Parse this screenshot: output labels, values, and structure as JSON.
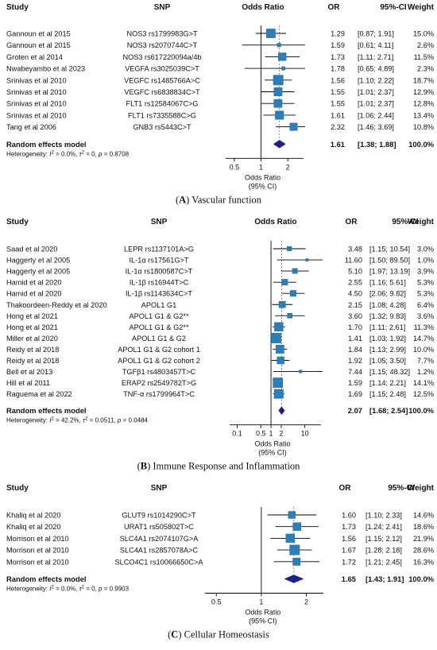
{
  "columns": {
    "study": "Study",
    "snp": "SNP",
    "or_header": "Odds Ratio",
    "or": "OR",
    "ci": "95%-CI",
    "weight": "Weight"
  },
  "chart_data": [
    {
      "type": "forest",
      "caption_letter": "A",
      "caption_text": "Vascular function",
      "xscale": "log",
      "xlim": [
        0.4,
        3.0
      ],
      "ticks": [
        "0.5",
        "1",
        "2"
      ],
      "tick_values": [
        0.5,
        1,
        2
      ],
      "xlabel_line1": "Odds Ratio",
      "xlabel_line2": "(95% CI)",
      "rows": [
        {
          "study": "Gannoun et al 2015",
          "snp": "NOS3 rs1799983G>T",
          "or": 1.29,
          "lo": 0.87,
          "hi": 1.91,
          "weight": 15.0,
          "or_text": "1.29",
          "ci_text": "[0.87; 1.91]",
          "weight_text": "15.0%"
        },
        {
          "study": "Gannoun et al 2015",
          "snp": "NOS3 rs2070744C>T",
          "or": 1.59,
          "lo": 0.61,
          "hi": 4.11,
          "weight": 2.6,
          "or_text": "1.59",
          "ci_text": "[0.61; 4.11]",
          "weight_text": "2.6%"
        },
        {
          "study": "Groten et al 2014",
          "snp": "NOS3 rs617220094a/4b",
          "or": 1.73,
          "lo": 1.11,
          "hi": 2.71,
          "weight": 11.5,
          "or_text": "1.73",
          "ci_text": "[1.11; 2.71]",
          "weight_text": "11.5%"
        },
        {
          "study": "Nwabeyambo et al 2023",
          "snp": "VEGFA rs3025039C>T",
          "or": 1.78,
          "lo": 0.65,
          "hi": 4.89,
          "weight": 2.3,
          "or_text": "1.78",
          "ci_text": "[0.65; 4.89]",
          "weight_text": "2.3%"
        },
        {
          "study": "Srinivas et al 2010",
          "snp": "VEGFC rs1485766A>C",
          "or": 1.56,
          "lo": 1.1,
          "hi": 2.22,
          "weight": 18.7,
          "or_text": "1.56",
          "ci_text": "[1.10; 2.22]",
          "weight_text": "18.7%"
        },
        {
          "study": "Srinivas et al 2010",
          "snp": "VEGFC rs6838834C>T",
          "or": 1.55,
          "lo": 1.01,
          "hi": 2.37,
          "weight": 12.9,
          "or_text": "1.55",
          "ci_text": "[1.01; 2.37]",
          "weight_text": "12.9%"
        },
        {
          "study": "Srinivas et al 2010",
          "snp": "FLT1 rs12584067C>G",
          "or": 1.55,
          "lo": 1.01,
          "hi": 2.37,
          "weight": 12.8,
          "or_text": "1.55",
          "ci_text": "[1.01; 2.37]",
          "weight_text": "12.8%"
        },
        {
          "study": "Srinivas et al 2010",
          "snp": "FLT1 rs7335588C>G",
          "or": 1.61,
          "lo": 1.06,
          "hi": 2.44,
          "weight": 13.4,
          "or_text": "1.61",
          "ci_text": "[1.06; 2.44]",
          "weight_text": "13.4%"
        },
        {
          "study": "Tang et al 2006",
          "snp": "GNB3 rs5443C>T",
          "or": 2.32,
          "lo": 1.46,
          "hi": 3.69,
          "weight": 10.8,
          "or_text": "2.32",
          "ci_text": "[1.46; 3.69]",
          "weight_text": "10.8%"
        }
      ],
      "summary": {
        "label": "Random effects model",
        "or": 1.61,
        "lo": 1.38,
        "hi": 1.88,
        "or_text": "1.61",
        "ci_text": "[1.38; 1.88]",
        "weight_text": "100.0%"
      },
      "heterogeneity": {
        "i2": "0.0%",
        "tau2": "0",
        "p": "0.8708"
      }
    },
    {
      "type": "forest",
      "caption_letter": "B",
      "caption_text": "Immune Response and Inflammation",
      "xscale": "log",
      "xlim": [
        0.06,
        30
      ],
      "ticks": [
        "0.1",
        "0.5",
        "1",
        "2",
        "10"
      ],
      "tick_values": [
        0.1,
        0.5,
        1,
        2,
        10
      ],
      "xlabel_line1": "Odds Ratio",
      "xlabel_line2": "(95% CI)",
      "rows": [
        {
          "study": "Saad et al 2020",
          "snp": "LEPR rs1137101A>G",
          "or": 3.48,
          "lo": 1.15,
          "hi": 10.54,
          "weight": 3.0,
          "or_text": "3.48",
          "ci_text": "[1.15; 10.54]",
          "weight_text": "3.0%"
        },
        {
          "study": "Haggerty et al 2005",
          "snp": "IL-1α rs17561G>T",
          "or": 11.6,
          "lo": 1.5,
          "hi": 89.5,
          "weight": 1.0,
          "or_text": "11.60",
          "ci_text": "[1.50; 89.50]",
          "weight_text": "1.0%"
        },
        {
          "study": "Haggerty et al 2005",
          "snp": "IL-1α rs1800587C>T",
          "or": 5.1,
          "lo": 1.97,
          "hi": 13.19,
          "weight": 3.9,
          "or_text": "5.10",
          "ci_text": "[1.97; 13.19]",
          "weight_text": "3.9%"
        },
        {
          "study": "Hamid et al 2020",
          "snp": "IL-1β rs16944T>C",
          "or": 2.55,
          "lo": 1.16,
          "hi": 5.61,
          "weight": 5.3,
          "or_text": "2.55",
          "ci_text": "[1.16; 5.61]",
          "weight_text": "5.3%"
        },
        {
          "study": "Hamid et al 2020",
          "snp": "IL-1β rs1143634C>T",
          "or": 4.5,
          "lo": 2.06,
          "hi": 9.82,
          "weight": 5.3,
          "or_text": "4.50",
          "ci_text": "[2.06; 9.82]",
          "weight_text": "5.3%"
        },
        {
          "study": "Thakoordeen-Reddy et al 2020",
          "snp": "APOL1 G1",
          "or": 2.15,
          "lo": 1.08,
          "hi": 4.28,
          "weight": 6.4,
          "or_text": "2.15",
          "ci_text": "[1.08; 4.28]",
          "weight_text": "6.4%"
        },
        {
          "study": "Hong et al 2021",
          "snp": "APOL1 G1 & G2**",
          "or": 3.6,
          "lo": 1.32,
          "hi": 9.83,
          "weight": 3.6,
          "or_text": "3.60",
          "ci_text": "[1.32; 9.83]",
          "weight_text": "3.6%"
        },
        {
          "study": "Hong et al 2021",
          "snp": "APOL1 G1 & G2**",
          "or": 1.7,
          "lo": 1.11,
          "hi": 2.61,
          "weight": 11.3,
          "or_text": "1.70",
          "ci_text": "[1.11; 2.61]",
          "weight_text": "11.3%"
        },
        {
          "study": "Miller et al 2020",
          "snp": "APOL1 G1 & G2",
          "or": 1.41,
          "lo": 1.03,
          "hi": 1.92,
          "weight": 14.7,
          "or_text": "1.41",
          "ci_text": "[1.03; 1.92]",
          "weight_text": "14.7%"
        },
        {
          "study": "Reidy et al 2018",
          "snp": "APOL1 G1 & G2 cohort 1",
          "or": 1.84,
          "lo": 1.13,
          "hi": 2.99,
          "weight": 10.0,
          "or_text": "1.84",
          "ci_text": "[1.13; 2.99]",
          "weight_text": "10.0%"
        },
        {
          "study": "Reidy et al 2018",
          "snp": "APOL1 G1 & G2 cohort 2",
          "or": 1.92,
          "lo": 1.05,
          "hi": 3.5,
          "weight": 7.7,
          "or_text": "1.92",
          "ci_text": "[1.05; 3.50]",
          "weight_text": "7.7%"
        },
        {
          "study": "Bell et al 2013",
          "snp": "TGFβ1 rs4803457T>C",
          "or": 7.44,
          "lo": 1.15,
          "hi": 48.32,
          "weight": 1.2,
          "or_text": "7.44",
          "ci_text": "[1.15; 48.32]",
          "weight_text": "1.2%"
        },
        {
          "study": "Hill et al 2011",
          "snp": "ERAP2 rs2549782T>G",
          "or": 1.59,
          "lo": 1.14,
          "hi": 2.21,
          "weight": 14.1,
          "or_text": "1.59",
          "ci_text": "[1.14; 2.21]",
          "weight_text": "14.1%"
        },
        {
          "study": "Raguema et al 2022",
          "snp": "TNF-α rs1799964T>C",
          "or": 1.69,
          "lo": 1.15,
          "hi": 2.48,
          "weight": 12.5,
          "or_text": "1.69",
          "ci_text": "[1.15; 2.48]",
          "weight_text": "12.5%"
        }
      ],
      "summary": {
        "label": "Random effects model",
        "or": 2.07,
        "lo": 1.68,
        "hi": 2.54,
        "or_text": "2.07",
        "ci_text": "[1.68; 2.54]",
        "weight_text": "100.0%"
      },
      "heterogeneity": {
        "i2": "42.2%",
        "tau2": "0.0511",
        "p": "0.0484"
      }
    },
    {
      "type": "forest",
      "caption_letter": "C",
      "caption_text": "Cellular Homeostasis",
      "xscale": "log",
      "xlim": [
        0.42,
        2.6
      ],
      "ticks": [
        "0.5",
        "1",
        "2"
      ],
      "tick_values": [
        0.5,
        1,
        2
      ],
      "xlabel_line1": "Odds Ratio",
      "xlabel_line2": "(95% CI)",
      "rows": [
        {
          "study": "Khaliq et al 2020",
          "snp": "GLUT9 rs1014290C>T",
          "or": 1.6,
          "lo": 1.1,
          "hi": 2.33,
          "weight": 14.6,
          "or_text": "1.60",
          "ci_text": "[1.10; 2.33]",
          "weight_text": "14.6%"
        },
        {
          "study": "Khaliq et al 2020",
          "snp": "URAT1 rs505802T>C",
          "or": 1.73,
          "lo": 1.24,
          "hi": 2.41,
          "weight": 18.6,
          "or_text": "1.73",
          "ci_text": "[1.24; 2.41]",
          "weight_text": "18.6%"
        },
        {
          "study": "Morrison et al 2010",
          "snp": "SLC4A1 rs2074107G>A",
          "or": 1.56,
          "lo": 1.15,
          "hi": 2.12,
          "weight": 21.9,
          "or_text": "1.56",
          "ci_text": "[1.15; 2.12]",
          "weight_text": "21.9%"
        },
        {
          "study": "Morrison et al 2010",
          "snp": "SLC4A1 rs2857078A>C",
          "or": 1.67,
          "lo": 1.28,
          "hi": 2.18,
          "weight": 28.6,
          "or_text": "1.67",
          "ci_text": "[1.28; 2.18]",
          "weight_text": "28.6%"
        },
        {
          "study": "Morrison et al 2010",
          "snp": "SLCO4C1 rs10066650C>A",
          "or": 1.72,
          "lo": 1.21,
          "hi": 2.45,
          "weight": 16.3,
          "or_text": "1.72",
          "ci_text": "[1.21; 2.45]",
          "weight_text": "16.3%"
        }
      ],
      "summary": {
        "label": "Random effects model",
        "or": 1.65,
        "lo": 1.43,
        "hi": 1.91,
        "or_text": "1.65",
        "ci_text": "[1.43; 1.91]",
        "weight_text": "100.0%"
      },
      "heterogeneity": {
        "i2": "0.0%",
        "tau2": "0",
        "p": "0.9903"
      }
    }
  ],
  "colors": {
    "square": "#2a7fb8",
    "diamond": "#1f1f8c",
    "line": "#000000",
    "text": "#111111"
  }
}
